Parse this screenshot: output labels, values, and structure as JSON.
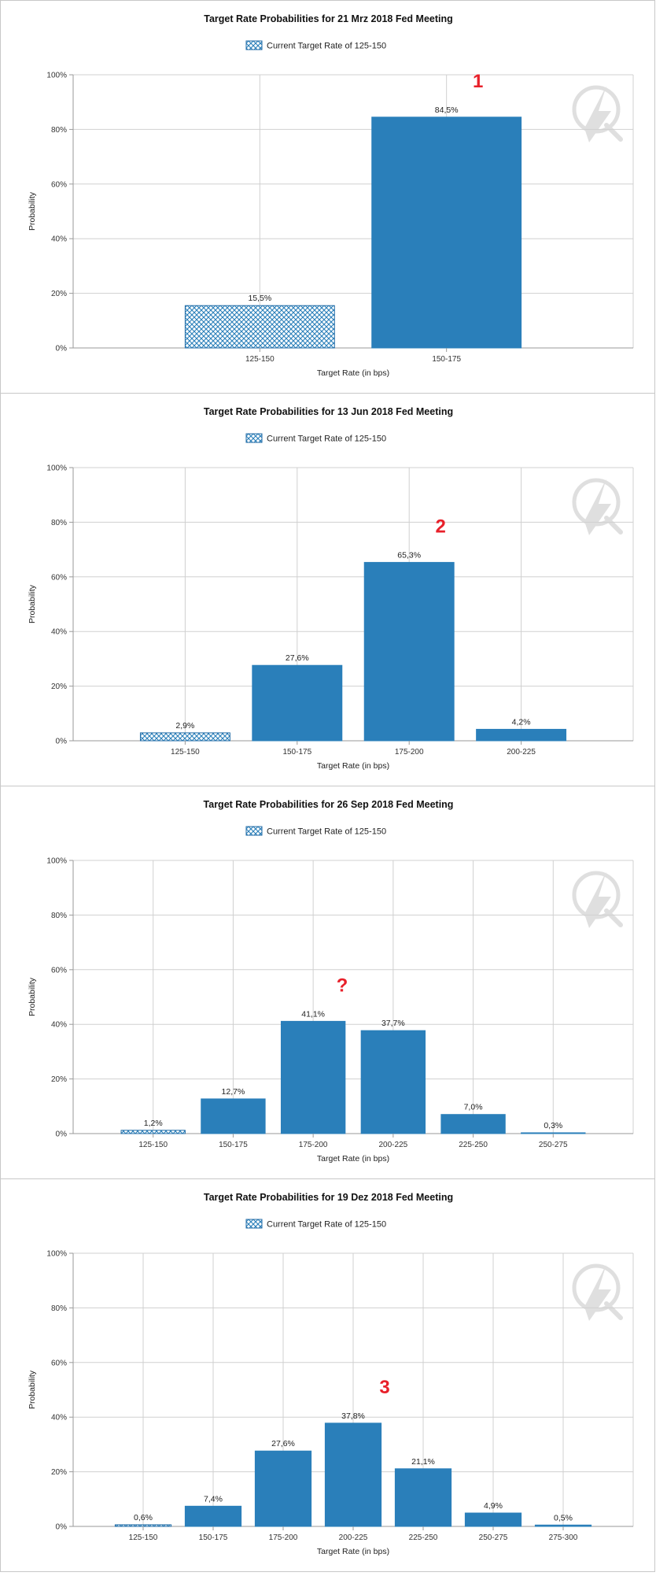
{
  "colors": {
    "bar": "#2a7fba",
    "bar_edge": "#1f6aa5",
    "grid": "#d0d0d0",
    "axis": "#9a9a9a",
    "annotation": "#e8202a",
    "hatch_bg": "#ffffff"
  },
  "chart_data": [
    {
      "type": "bar",
      "title": "Target Rate Probabilities for 21 Mrz 2018 Fed Meeting",
      "legend_label": "Current Target Rate of 125-150",
      "xlabel": "Target Rate (in bps)",
      "ylabel": "Probability",
      "ylim": [
        0,
        100
      ],
      "yticks": [
        "0%",
        "20%",
        "40%",
        "60%",
        "80%",
        "100%"
      ],
      "grid": true,
      "legend_position": "top",
      "categories": [
        "125-150",
        "150-175"
      ],
      "values": [
        15.5,
        84.5
      ],
      "value_labels": [
        "15,5%",
        "84,5%"
      ],
      "current_index": 0,
      "annotation": {
        "text": "1",
        "category_index": 1
      }
    },
    {
      "type": "bar",
      "title": "Target Rate Probabilities for 13 Jun 2018 Fed Meeting",
      "legend_label": "Current Target Rate of 125-150",
      "xlabel": "Target Rate (in bps)",
      "ylabel": "Probability",
      "ylim": [
        0,
        100
      ],
      "yticks": [
        "0%",
        "20%",
        "40%",
        "60%",
        "80%",
        "100%"
      ],
      "grid": true,
      "legend_position": "top",
      "categories": [
        "125-150",
        "150-175",
        "175-200",
        "200-225"
      ],
      "values": [
        2.9,
        27.6,
        65.3,
        4.2
      ],
      "value_labels": [
        "2,9%",
        "27,6%",
        "65,3%",
        "4,2%"
      ],
      "current_index": 0,
      "annotation": {
        "text": "2",
        "category_index": 2
      }
    },
    {
      "type": "bar",
      "title": "Target Rate Probabilities for 26 Sep 2018 Fed Meeting",
      "legend_label": "Current Target Rate of 125-150",
      "xlabel": "Target Rate (in bps)",
      "ylabel": "Probability",
      "ylim": [
        0,
        100
      ],
      "yticks": [
        "0%",
        "20%",
        "40%",
        "60%",
        "80%",
        "100%"
      ],
      "grid": true,
      "legend_position": "top",
      "categories": [
        "125-150",
        "150-175",
        "175-200",
        "200-225",
        "225-250",
        "250-275"
      ],
      "values": [
        1.2,
        12.7,
        41.1,
        37.7,
        7.0,
        0.3
      ],
      "value_labels": [
        "1,2%",
        "12,7%",
        "41,1%",
        "37,7%",
        "7,0%",
        "0,3%"
      ],
      "current_index": 0,
      "annotation": {
        "text": "?",
        "category_index": 2.5
      }
    },
    {
      "type": "bar",
      "title": "Target Rate Probabilities for 19 Dez 2018 Fed Meeting",
      "legend_label": "Current Target Rate of 125-150",
      "xlabel": "Target Rate (in bps)",
      "ylabel": "Probability",
      "ylim": [
        0,
        100
      ],
      "yticks": [
        "0%",
        "20%",
        "40%",
        "60%",
        "80%",
        "100%"
      ],
      "grid": true,
      "legend_position": "top",
      "categories": [
        "125-150",
        "150-175",
        "175-200",
        "200-225",
        "225-250",
        "250-275",
        "275-300"
      ],
      "values": [
        0.6,
        7.4,
        27.6,
        37.8,
        21.1,
        4.9,
        0.5
      ],
      "value_labels": [
        "0,6%",
        "7,4%",
        "27,6%",
        "37,8%",
        "21,1%",
        "4,9%",
        "0,5%"
      ],
      "current_index": 0,
      "annotation": {
        "text": "3",
        "category_index": 3
      }
    }
  ]
}
